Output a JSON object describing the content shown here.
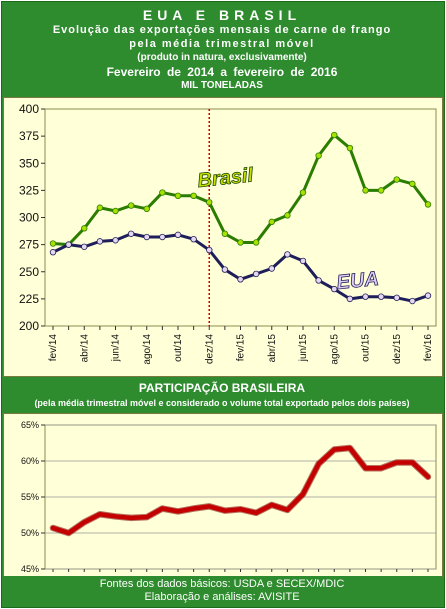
{
  "header": {
    "title": "EUA E BRASIL",
    "line1": "Evolução das exportações mensais de carne de frango",
    "line2": "pela média trimestral móvel",
    "line3": "(produto in natura, exclusivamente)",
    "line4": "Fevereiro de 2014 a fevereiro de 2016",
    "line5": "MIL TONELADAS"
  },
  "section2": {
    "title": "PARTICIPAÇÃO BRASILEIRA",
    "subtitle": "(pela média trimestral móvel e considerado o volume total exportado pelos dois países)"
  },
  "footer": {
    "line1": "Fontes dos dados básicos: USDA e SECEX/MDIC",
    "line2": "Elaboração e análises: AVISITE"
  },
  "colors": {
    "frame": "#2e8b2e",
    "plot_bg": "#ffffd8",
    "brasil_line": "#2a7d00",
    "brasil_marker": "#a8e000",
    "eua_line": "#1e1e5a",
    "eua_marker": "#e6d6f0",
    "share_line": "#c40000",
    "divider": "#d00000"
  },
  "chart_data": [
    {
      "type": "line",
      "title": "Evolução das exportações mensais de carne de frango pela média trimestral móvel",
      "ylabel": "MIL TONELADAS",
      "ylim": [
        200,
        400
      ],
      "yticks": [
        200,
        225,
        250,
        275,
        300,
        325,
        350,
        375,
        400
      ],
      "x": [
        "fev/14",
        "mar/14",
        "abr/14",
        "mai/14",
        "jun/14",
        "jul/14",
        "ago/14",
        "set/14",
        "out/14",
        "nov/14",
        "dez/14",
        "jan/15",
        "fev/15",
        "mar/15",
        "abr/15",
        "mai/15",
        "jun/15",
        "jul/15",
        "ago/15",
        "set/15",
        "out/15",
        "nov/15",
        "dez/15",
        "jan/16",
        "fev/16"
      ],
      "xtick_labels": [
        "fev/14",
        "abr/14",
        "jun/14",
        "ago/14",
        "out/14",
        "dez/14",
        "fev/15",
        "abr/15",
        "jun/15",
        "ago/15",
        "out/15",
        "dez/15",
        "fev/16"
      ],
      "series": [
        {
          "name": "Brasil",
          "values": [
            276,
            275,
            290,
            309,
            306,
            311,
            308,
            323,
            320,
            320,
            314,
            285,
            277,
            277,
            296,
            302,
            323,
            357,
            376,
            364,
            325,
            325,
            335,
            331,
            312
          ]
        },
        {
          "name": "EUA",
          "values": [
            268,
            275,
            273,
            278,
            279,
            285,
            282,
            282,
            284,
            280,
            270,
            252,
            243,
            248,
            253,
            266,
            260,
            242,
            234,
            225,
            227,
            227,
            226,
            223,
            228
          ]
        }
      ],
      "marker_line_at": "dez/14",
      "grid": false
    },
    {
      "type": "line",
      "title": "PARTICIPAÇÃO BRASILEIRA",
      "ylim": [
        45,
        65
      ],
      "yticks": [
        "45%",
        "50%",
        "55%",
        "60%",
        "65%"
      ],
      "x": [
        "fev/14",
        "mar/14",
        "abr/14",
        "mai/14",
        "jun/14",
        "jul/14",
        "ago/14",
        "set/14",
        "out/14",
        "nov/14",
        "dez/14",
        "jan/15",
        "fev/15",
        "mar/15",
        "abr/15",
        "mai/15",
        "jun/15",
        "jul/15",
        "ago/15",
        "set/15",
        "out/15",
        "nov/15",
        "dez/15",
        "jan/16",
        "fev/16"
      ],
      "series": [
        {
          "name": "",
          "values": [
            50.7,
            50.0,
            51.5,
            52.6,
            52.3,
            52.1,
            52.2,
            53.4,
            53.0,
            53.4,
            53.7,
            53.1,
            53.3,
            52.8,
            53.9,
            53.2,
            55.4,
            59.6,
            61.6,
            61.8,
            59.0,
            59.0,
            59.8,
            59.8,
            57.8
          ]
        }
      ],
      "grid": true
    }
  ]
}
